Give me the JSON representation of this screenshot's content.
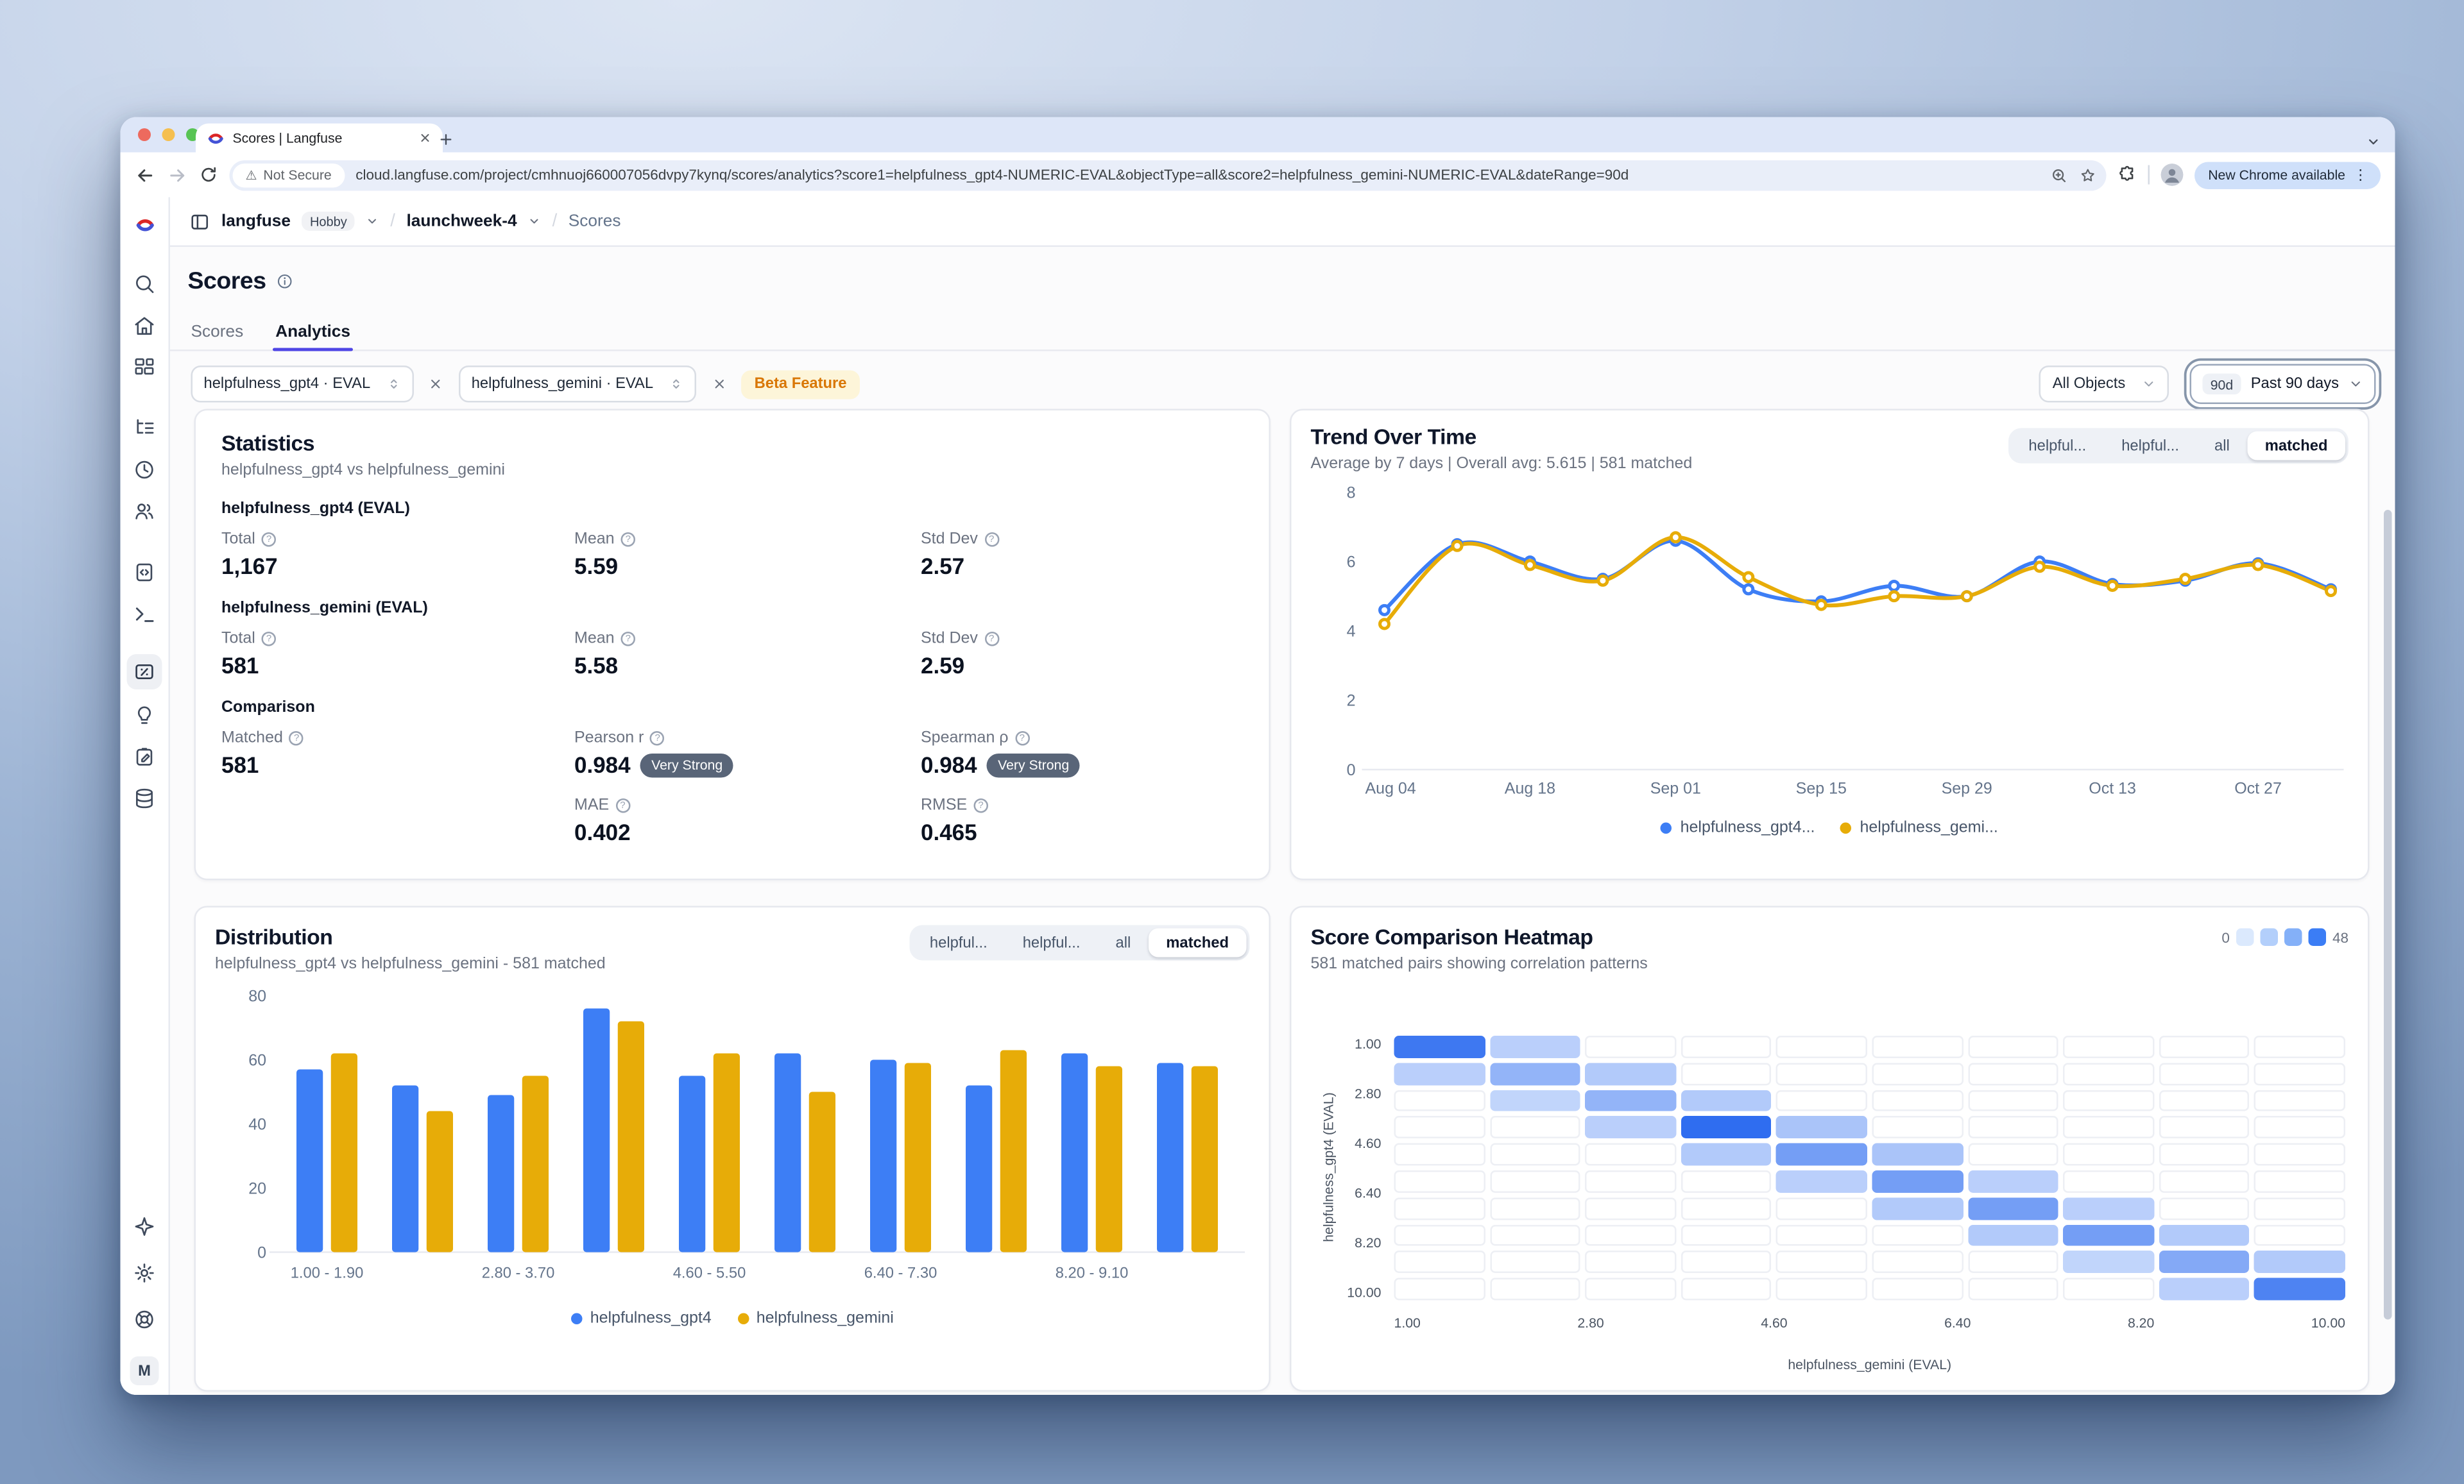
{
  "browser": {
    "tab_title": "Scores | Langfuse",
    "not_secure": "Not Secure",
    "url": "cloud.langfuse.com/project/cmhnuoj660007056dvpy7kynq/scores/analytics?score1=helpfulness_gpt4-NUMERIC-EVAL&objectType=all&score2=helpfulness_gemini-NUMERIC-EVAL&dateRange=90d",
    "update_button": "New Chrome available"
  },
  "header": {
    "org": "langfuse",
    "plan": "Hobby",
    "project": "launchweek-4",
    "page": "Scores"
  },
  "page": {
    "title": "Scores",
    "tabs": [
      "Scores",
      "Analytics"
    ],
    "active_tab": "Analytics"
  },
  "filters": {
    "score1": "helpfulness_gpt4 · EVAL",
    "score2": "helpfulness_gemini · EVAL",
    "beta_badge": "Beta Feature",
    "object_select": "All Objects",
    "range_badge": "90d",
    "range_label": "Past 90 days"
  },
  "sidebar": {
    "items": [
      "search",
      "home",
      "dashboards",
      "tracing",
      "sessions",
      "users",
      "prompts",
      "playground",
      "scores",
      "insights",
      "annotation",
      "datasets"
    ],
    "active": "scores",
    "footer": [
      "whats-new",
      "settings",
      "support"
    ],
    "avatar": "M"
  },
  "statistics": {
    "title": "Statistics",
    "subtitle": "helpfulness_gpt4 vs helpfulness_gemini",
    "gpt4": {
      "heading": "helpfulness_gpt4 (EVAL)",
      "total_label": "Total",
      "total": "1,167",
      "mean_label": "Mean",
      "mean": "5.59",
      "std_label": "Std Dev",
      "std": "2.57"
    },
    "gemini": {
      "heading": "helpfulness_gemini (EVAL)",
      "total_label": "Total",
      "total": "581",
      "mean_label": "Mean",
      "mean": "5.58",
      "std_label": "Std Dev",
      "std": "2.59"
    },
    "comparison": {
      "heading": "Comparison",
      "matched_label": "Matched",
      "matched": "581",
      "pearson_label": "Pearson r",
      "pearson": "0.984",
      "pearson_badge": "Very Strong",
      "spearman_label": "Spearman ρ",
      "spearman": "0.984",
      "spearman_badge": "Very Strong",
      "mae_label": "MAE",
      "mae": "0.402",
      "rmse_label": "RMSE",
      "rmse": "0.465"
    }
  },
  "trend": {
    "title": "Trend Over Time",
    "subtitle": "Average by 7 days | Overall avg: 5.615 | 581 matched",
    "tabs": [
      "helpful...",
      "helpful...",
      "all",
      "matched"
    ],
    "active_tab": "matched",
    "legend": [
      "helpfulness_gpt4...",
      "helpfulness_gemi..."
    ]
  },
  "distribution": {
    "title": "Distribution",
    "subtitle": "helpfulness_gpt4 vs helpfulness_gemini - 581 matched",
    "tabs": [
      "helpful...",
      "helpful...",
      "all",
      "matched"
    ],
    "active_tab": "matched",
    "legend": [
      "helpfulness_gpt4",
      "helpfulness_gemini"
    ]
  },
  "heatmap": {
    "title": "Score Comparison Heatmap",
    "subtitle": "581 matched pairs showing correlation patterns",
    "scale_min": "0",
    "scale_max": "48",
    "x_label": "helpfulness_gemini (EVAL)",
    "y_label": "helpfulness_gpt4 (EVAL)"
  },
  "colors": {
    "blue": "#3d7ef5",
    "amber": "#e7ac08",
    "indigo": "#4f46e5"
  },
  "chart_data": [
    {
      "type": "line",
      "title": "Trend Over Time",
      "x_ticks": [
        "Aug 04",
        "Aug 18",
        "Sep 01",
        "Sep 15",
        "Sep 29",
        "Oct 13",
        "Oct 27"
      ],
      "ylim": [
        0,
        8
      ],
      "y_ticks": [
        0,
        2,
        4,
        6,
        8
      ],
      "series": [
        {
          "name": "helpfulness_gpt4",
          "color": "#3d7ef5",
          "values": [
            4.6,
            6.5,
            6.0,
            5.5,
            6.6,
            5.2,
            4.85,
            5.3,
            5.0,
            6.0,
            5.35,
            5.45,
            5.95,
            5.2
          ]
        },
        {
          "name": "helpfulness_gemini",
          "color": "#e7ac08",
          "values": [
            4.2,
            6.45,
            5.9,
            5.45,
            6.7,
            5.55,
            4.75,
            5.0,
            5.0,
            5.85,
            5.3,
            5.5,
            5.9,
            5.15
          ]
        }
      ]
    },
    {
      "type": "bar",
      "title": "Distribution",
      "categories": [
        "1.00 - 1.90",
        "1.90 - 2.80",
        "2.80 - 3.70",
        "3.70 - 4.60",
        "4.60 - 5.50",
        "5.50 - 6.40",
        "6.40 - 7.30",
        "7.30 - 8.20",
        "8.20 - 9.10",
        "9.10 - 10.00"
      ],
      "x_tick_labels": [
        "1.00 - 1.90",
        "2.80 - 3.70",
        "4.60 - 5.50",
        "6.40 - 7.30",
        "8.20 - 9.10"
      ],
      "ylim": [
        0,
        80
      ],
      "y_ticks": [
        0,
        20,
        40,
        60,
        80
      ],
      "series": [
        {
          "name": "helpfulness_gpt4",
          "color": "#3d7ef5",
          "values": [
            57,
            52,
            49,
            76,
            55,
            62,
            60,
            52,
            62,
            59
          ]
        },
        {
          "name": "helpfulness_gemini",
          "color": "#e7ac08",
          "values": [
            62,
            44,
            55,
            72,
            62,
            50,
            59,
            63,
            58,
            58
          ]
        }
      ]
    },
    {
      "type": "heatmap",
      "title": "Score Comparison Heatmap",
      "x_ticks": [
        "1.00",
        "2.80",
        "4.60",
        "6.40",
        "8.20",
        "10.00"
      ],
      "y_ticks": [
        "1.00",
        "2.80",
        "4.60",
        "6.40",
        "8.20",
        "10.00"
      ],
      "vmin": 0,
      "vmax": 48,
      "rows": [
        [
          44,
          12,
          0,
          0,
          0,
          0,
          0,
          0,
          0,
          0
        ],
        [
          12,
          22,
          14,
          0,
          0,
          0,
          0,
          0,
          0,
          0
        ],
        [
          0,
          10,
          22,
          14,
          0,
          0,
          0,
          0,
          0,
          0
        ],
        [
          0,
          0,
          12,
          48,
          16,
          0,
          0,
          0,
          0,
          0
        ],
        [
          0,
          0,
          0,
          14,
          30,
          16,
          0,
          0,
          0,
          0
        ],
        [
          0,
          0,
          0,
          0,
          12,
          30,
          12,
          0,
          0,
          0
        ],
        [
          0,
          0,
          0,
          0,
          0,
          14,
          30,
          12,
          0,
          0
        ],
        [
          0,
          0,
          0,
          0,
          0,
          0,
          14,
          30,
          14,
          0
        ],
        [
          0,
          0,
          0,
          0,
          0,
          0,
          0,
          10,
          26,
          14
        ],
        [
          0,
          0,
          0,
          0,
          0,
          0,
          0,
          0,
          12,
          40
        ]
      ]
    }
  ]
}
